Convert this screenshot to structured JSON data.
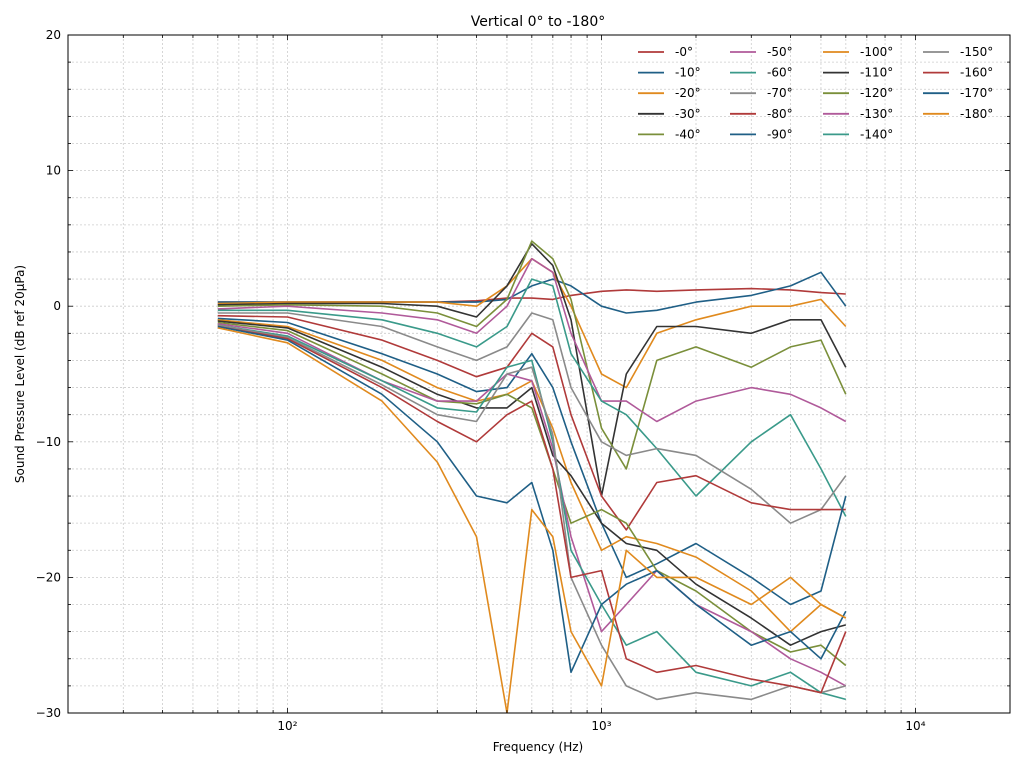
{
  "chart_data": {
    "type": "line",
    "title": "Vertical 0° to -180°",
    "xlabel": "Frequency (Hz)",
    "ylabel": "Sound Pressure Level (dB ref 20µPa)",
    "xscale": "log",
    "xlim": [
      20,
      20000
    ],
    "ylim": [
      -30,
      20
    ],
    "yticks": [
      -30,
      -20,
      -10,
      0,
      10,
      20
    ],
    "ytick_labels": [
      "−30",
      "−20",
      "−10",
      "0",
      "10",
      "20"
    ],
    "xticks": [
      100,
      1000,
      10000
    ],
    "xtick_labels": [
      "10²",
      "10³",
      "10⁴"
    ],
    "grid": true,
    "legend": {
      "placement": "top-right",
      "columns": 4
    },
    "x": [
      60,
      100,
      200,
      300,
      400,
      500,
      600,
      700,
      800,
      1000,
      1200,
      1500,
      2000,
      3000,
      4000,
      5000,
      6000
    ],
    "series": [
      {
        "name": "-0°",
        "color": "#b03a3a",
        "values": [
          0.3,
          0.3,
          0.3,
          0.3,
          0.4,
          0.6,
          0.6,
          0.5,
          0.8,
          1.1,
          1.2,
          1.1,
          1.2,
          1.3,
          1.2,
          1.0,
          0.9
        ]
      },
      {
        "name": "-10°",
        "color": "#1f5f86",
        "values": [
          0.3,
          0.3,
          0.3,
          0.3,
          0.3,
          0.5,
          1.5,
          2.0,
          1.5,
          0.0,
          -0.5,
          -0.3,
          0.3,
          0.8,
          1.5,
          2.5,
          0.0
        ]
      },
      {
        "name": "-20°",
        "color": "#e08a1e",
        "values": [
          0.2,
          0.3,
          0.3,
          0.3,
          0.0,
          1.5,
          3.5,
          2.5,
          0.0,
          -5.0,
          -6.0,
          -2.0,
          -1.0,
          0.0,
          0.0,
          0.5,
          -1.5
        ]
      },
      {
        "name": "-30°",
        "color": "#333333",
        "values": [
          0.1,
          0.2,
          0.2,
          0.0,
          -0.8,
          1.5,
          4.6,
          3.0,
          -1.0,
          -14.0,
          -5.0,
          -1.5,
          -1.5,
          -2.0,
          -1.0,
          -1.0,
          -4.5
        ]
      },
      {
        "name": "-40°",
        "color": "#7a8f3a",
        "values": [
          0.0,
          0.1,
          0.0,
          -0.5,
          -1.5,
          0.5,
          4.8,
          3.5,
          0.5,
          -9.0,
          -12.0,
          -4.0,
          -3.0,
          -4.5,
          -3.0,
          -2.5,
          -6.5
        ]
      },
      {
        "name": "-50°",
        "color": "#b05a9a",
        "values": [
          -0.2,
          0.0,
          -0.5,
          -1.0,
          -2.0,
          0.0,
          3.5,
          2.5,
          -2.0,
          -7.0,
          -7.0,
          -8.5,
          -7.0,
          -6.0,
          -6.5,
          -7.5,
          -8.5
        ]
      },
      {
        "name": "-60°",
        "color": "#3a9a8a",
        "values": [
          -0.3,
          -0.3,
          -1.0,
          -2.0,
          -3.0,
          -1.5,
          2.0,
          1.5,
          -3.5,
          -7.0,
          -8.0,
          -10.5,
          -14.0,
          -10.0,
          -8.0,
          -12.0,
          -15.5
        ]
      },
      {
        "name": "-70°",
        "color": "#8a8a8a",
        "values": [
          -0.5,
          -0.5,
          -1.5,
          -3.0,
          -4.0,
          -3.0,
          -0.5,
          -1.0,
          -6.0,
          -10.0,
          -11.0,
          -10.5,
          -11.0,
          -13.5,
          -16.0,
          -15.0,
          -12.5
        ]
      },
      {
        "name": "-80°",
        "color": "#b03a3a",
        "values": [
          -0.7,
          -0.8,
          -2.5,
          -4.0,
          -5.2,
          -4.5,
          -2.0,
          -3.0,
          -8.0,
          -14.0,
          -16.5,
          -13.0,
          -12.5,
          -14.5,
          -15.0,
          -15.0,
          -15.0
        ]
      },
      {
        "name": "-90°",
        "color": "#1f5f86",
        "values": [
          -0.9,
          -1.2,
          -3.5,
          -5.0,
          -6.3,
          -6.0,
          -3.5,
          -6.0,
          -10.0,
          -16.0,
          -20.0,
          -19.0,
          -17.5,
          -20.0,
          -22.0,
          -21.0,
          -14.0
        ]
      },
      {
        "name": "-100°",
        "color": "#e08a1e",
        "values": [
          -1.0,
          -1.5,
          -4.0,
          -6.0,
          -7.0,
          -6.5,
          -5.5,
          -9.0,
          -13.0,
          -18.0,
          -17.0,
          -17.5,
          -18.5,
          -21.0,
          -24.0,
          -22.0,
          -23.0
        ]
      },
      {
        "name": "-110°",
        "color": "#333333",
        "values": [
          -1.1,
          -1.6,
          -4.5,
          -6.5,
          -7.5,
          -7.5,
          -6.0,
          -11.0,
          -12.5,
          -16.0,
          -17.5,
          -18.0,
          -20.5,
          -23.0,
          -25.0,
          -24.0,
          -23.5
        ]
      },
      {
        "name": "-120°",
        "color": "#7a8f3a",
        "values": [
          -1.2,
          -1.8,
          -5.0,
          -7.0,
          -7.2,
          -6.5,
          -7.5,
          -12.0,
          -16.0,
          -15.0,
          -16.0,
          -19.5,
          -21.0,
          -24.0,
          -25.5,
          -25.0,
          -26.5
        ]
      },
      {
        "name": "-130°",
        "color": "#b05a9a",
        "values": [
          -1.3,
          -2.0,
          -5.5,
          -7.0,
          -7.0,
          -5.0,
          -5.5,
          -10.5,
          -17.0,
          -24.0,
          -22.0,
          -19.5,
          -22.0,
          -24.0,
          -26.0,
          -27.0,
          -28.0
        ]
      },
      {
        "name": "-140°",
        "color": "#3a9a8a",
        "values": [
          -1.4,
          -2.2,
          -5.5,
          -7.5,
          -7.8,
          -4.5,
          -4.0,
          -10.0,
          -18.0,
          -22.0,
          -25.0,
          -24.0,
          -27.0,
          -28.0,
          -27.0,
          -28.5,
          -29.0
        ]
      },
      {
        "name": "-150°",
        "color": "#8a8a8a",
        "values": [
          -1.4,
          -2.3,
          -5.8,
          -8.0,
          -8.5,
          -5.0,
          -4.5,
          -9.5,
          -20.0,
          -25.0,
          -28.0,
          -29.0,
          -28.5,
          -29.0,
          -28.0,
          -28.5,
          -28.0
        ]
      },
      {
        "name": "-160°",
        "color": "#b03a3a",
        "values": [
          -1.5,
          -2.4,
          -6.0,
          -8.5,
          -10.0,
          -8.0,
          -7.0,
          -12.0,
          -20.0,
          -19.5,
          -26.0,
          -27.0,
          -26.5,
          -27.5,
          -28.0,
          -28.5,
          -24.0
        ]
      },
      {
        "name": "-170°",
        "color": "#1f5f86",
        "values": [
          -1.5,
          -2.5,
          -6.5,
          -10.0,
          -14.0,
          -14.5,
          -13.0,
          -18.0,
          -27.0,
          -22.0,
          -20.5,
          -19.5,
          -22.0,
          -25.0,
          -24.0,
          -26.0,
          -22.5
        ]
      },
      {
        "name": "-180°",
        "color": "#e08a1e",
        "values": [
          -1.6,
          -2.7,
          -7.0,
          -11.5,
          -17.0,
          -30.0,
          -15.0,
          -17.0,
          -24.0,
          -28.0,
          -18.0,
          -20.0,
          -20.0,
          -22.0,
          -20.0,
          -22.0,
          -23.0
        ]
      }
    ]
  }
}
